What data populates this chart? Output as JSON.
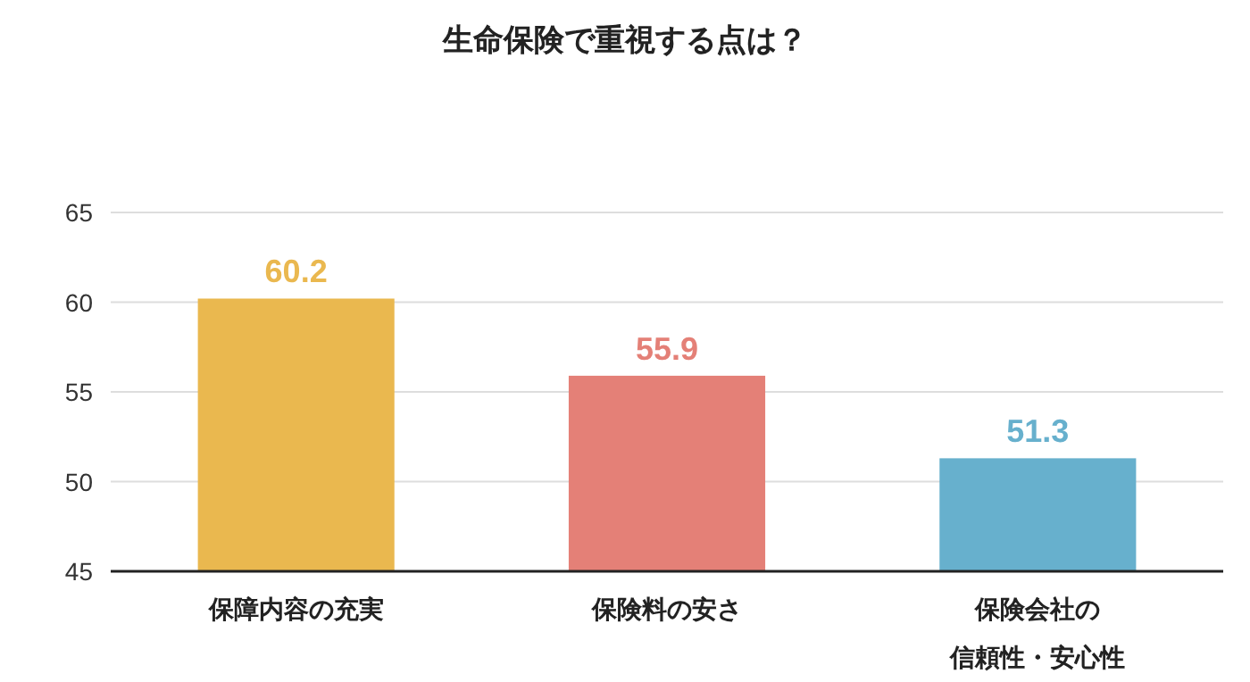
{
  "chart_data": {
    "type": "bar",
    "title": "生命保険で重視する点は？",
    "categories": [
      "保障内容の充実",
      "保険料の安さ",
      "保険会社の信頼性・安心性"
    ],
    "values": [
      60.2,
      55.9,
      51.3
    ],
    "colors": [
      "#eab84f",
      "#e48077",
      "#67b0cd"
    ],
    "ylim": [
      45,
      65
    ],
    "yticks": [
      45,
      50,
      55,
      60,
      65
    ],
    "grid": "y",
    "data_labels": true
  }
}
